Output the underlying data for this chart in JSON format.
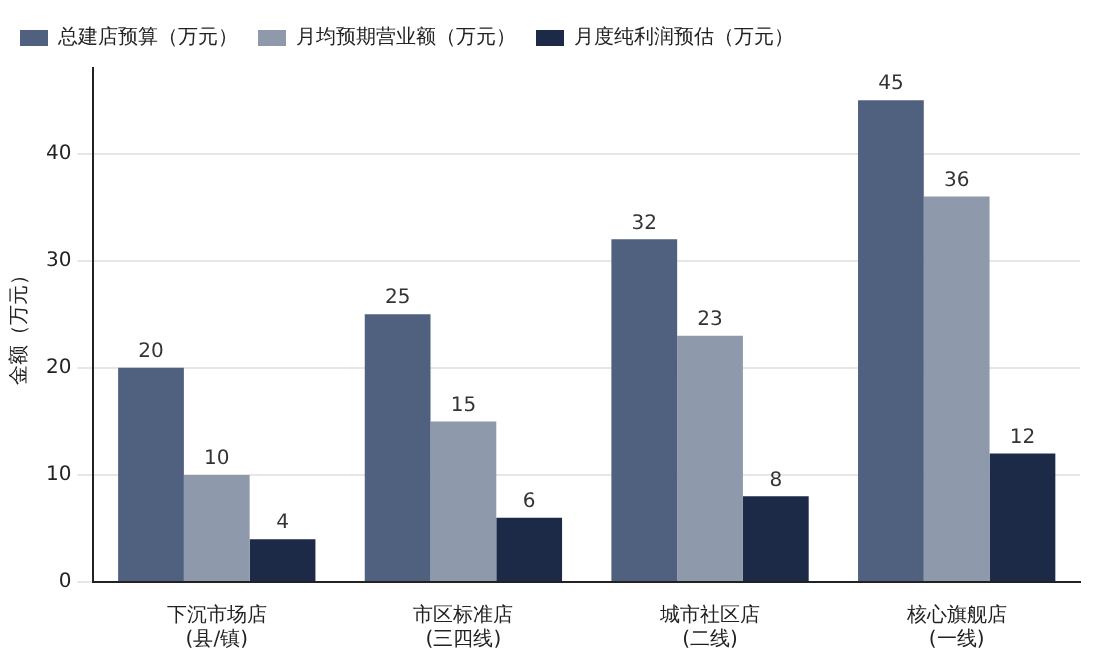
{
  "chart_data": {
    "type": "bar",
    "ylabel": "金额（万元）",
    "categories": [
      "下沉市场店\n(县/镇)",
      "市区标准店\n(三四线)",
      "城市社区店\n(二线)",
      "核心旗舰店\n(一线)"
    ],
    "series": [
      {
        "name": "总建店预算（万元）",
        "color": "#506180",
        "values": [
          20,
          25,
          32,
          45
        ]
      },
      {
        "name": "月均预期营业额（万元）",
        "color": "#8e9aab",
        "values": [
          10,
          15,
          23,
          36
        ]
      },
      {
        "name": "月度纯利润预估（万元）",
        "color": "#1c2a48",
        "values": [
          4,
          6,
          8,
          12
        ]
      }
    ],
    "ylim": [
      0,
      48
    ],
    "yticks": [
      0,
      10,
      20,
      30,
      40
    ],
    "grid": "y",
    "legend": "top left",
    "data_labels": true
  }
}
